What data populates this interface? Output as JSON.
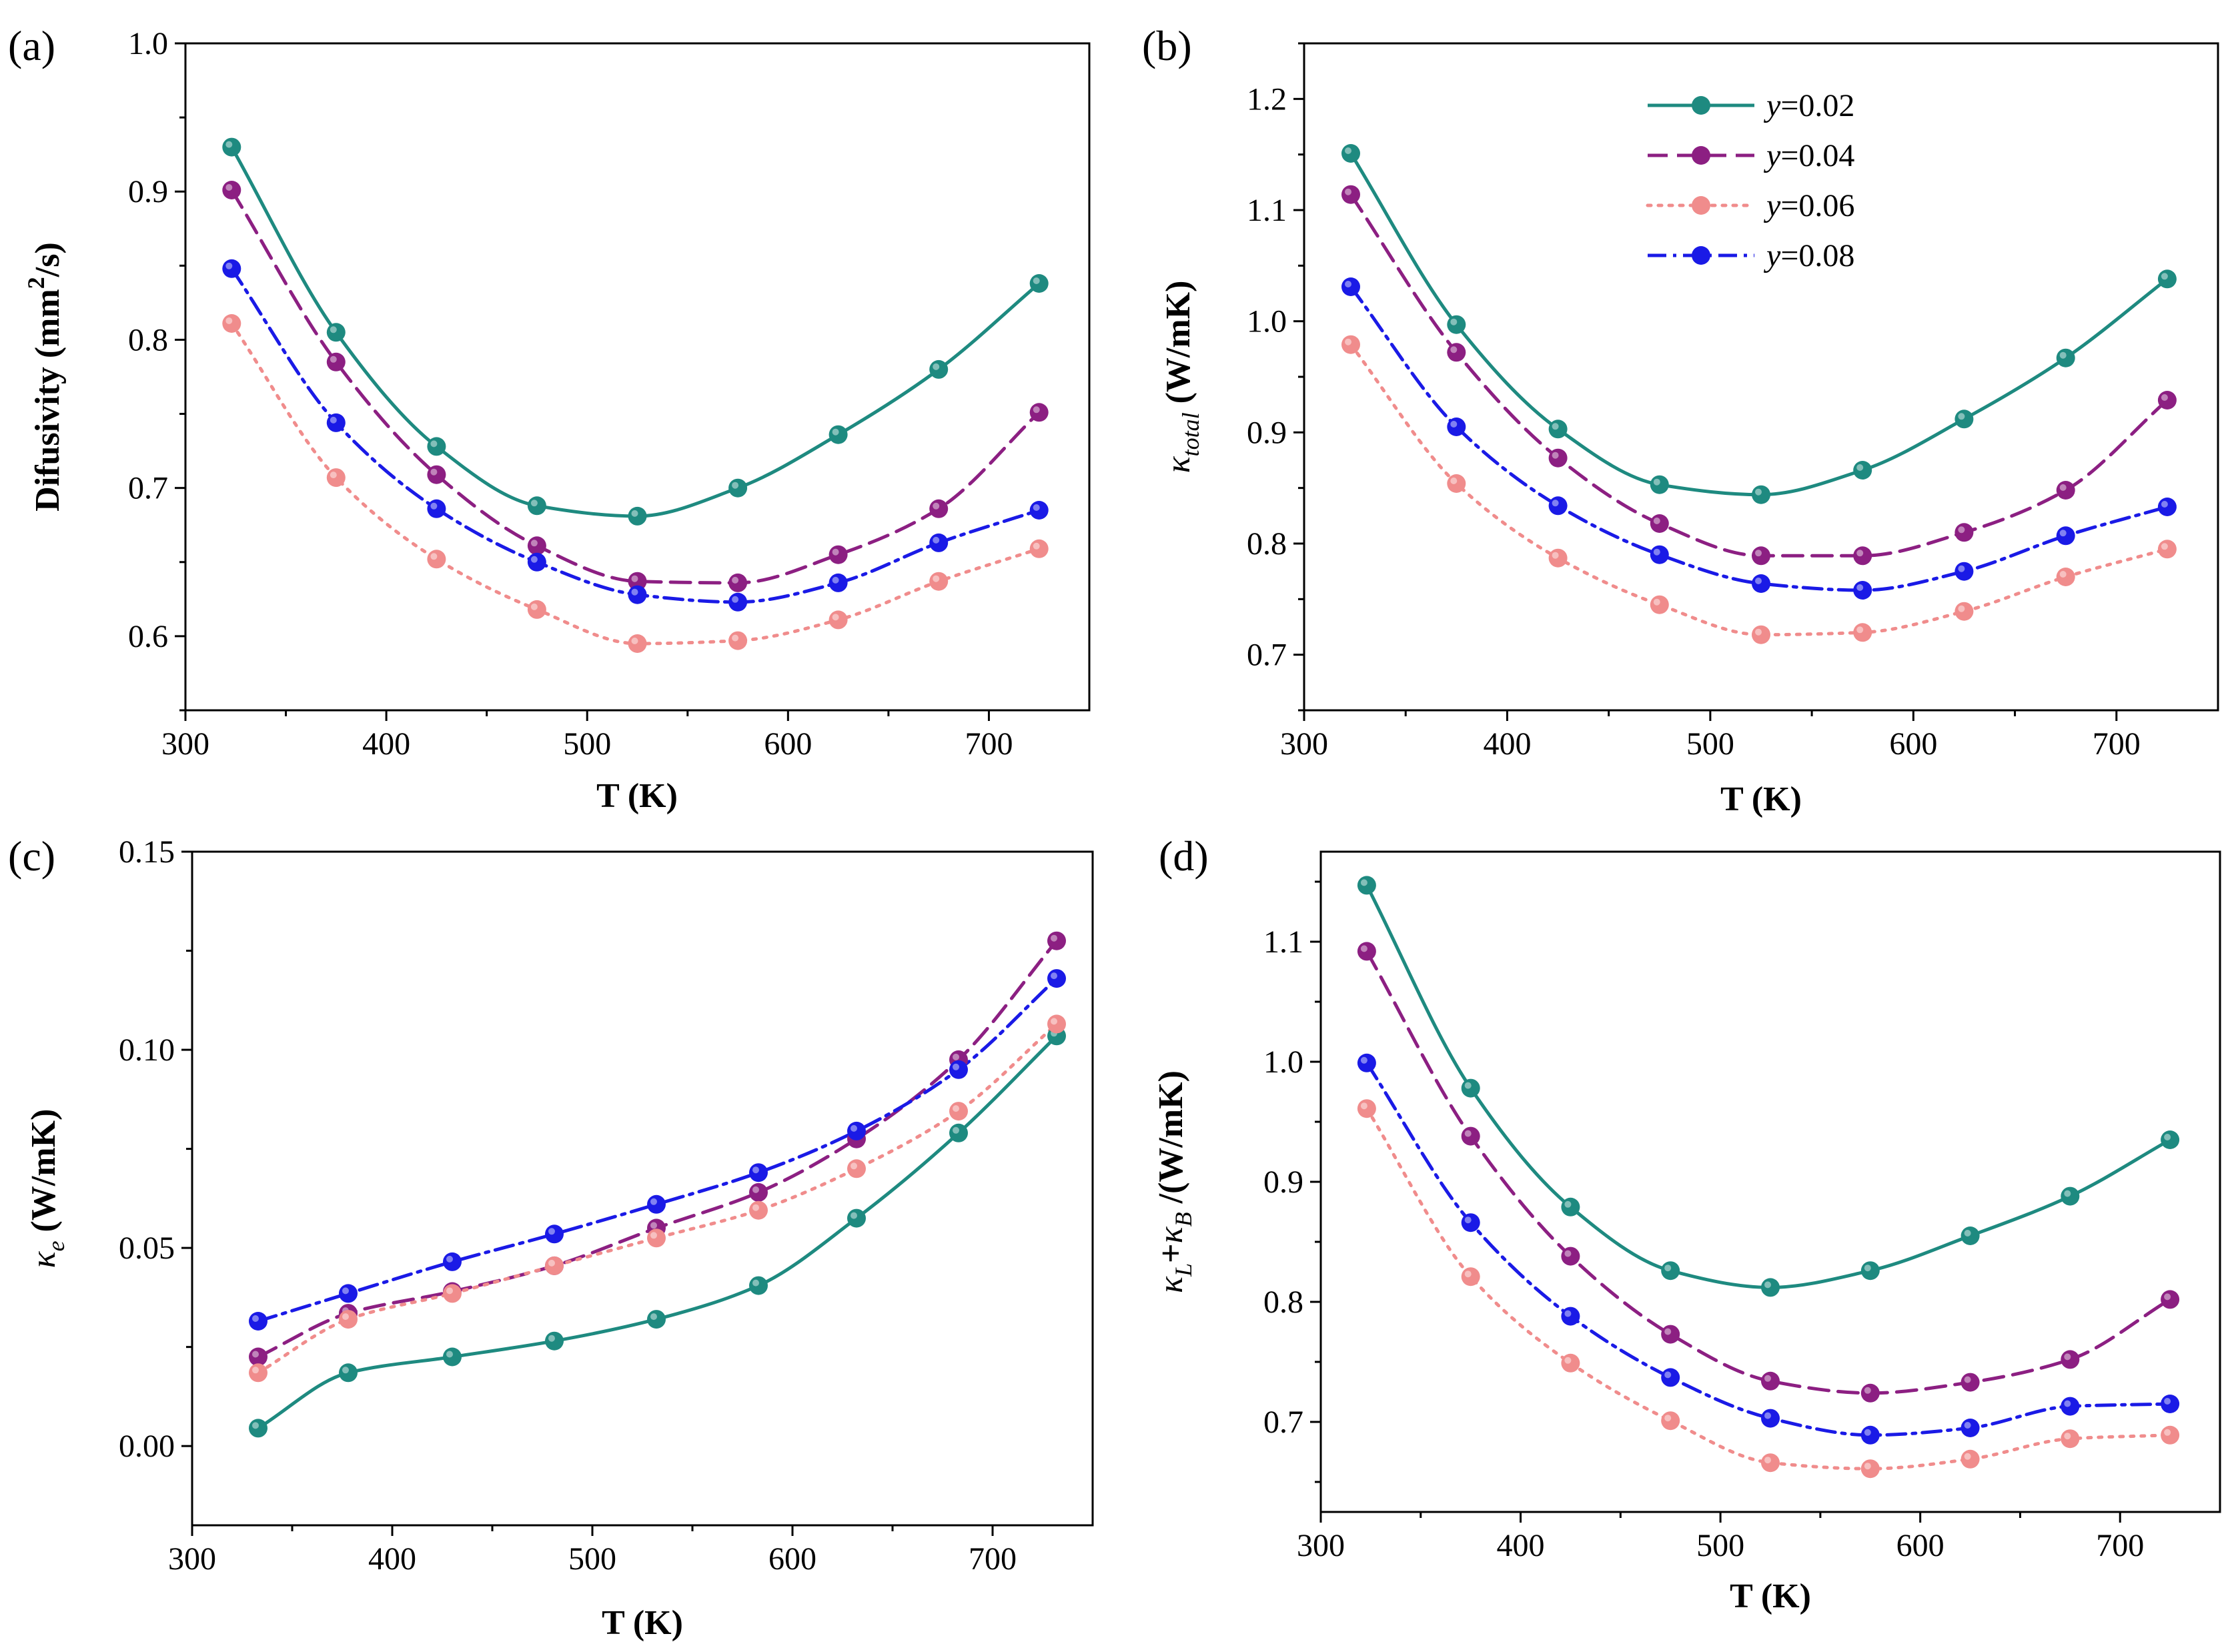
{
  "figure": {
    "legend": {
      "entries": [
        {
          "var": "y",
          "value": "=0.02"
        },
        {
          "var": "y",
          "value": "=0.04"
        },
        {
          "var": "y",
          "value": "=0.06"
        },
        {
          "var": "y",
          "value": "=0.08"
        }
      ]
    }
  },
  "series_style": [
    {
      "name": "y=0.02",
      "color": "#1e8a80",
      "dash": "solid"
    },
    {
      "name": "y=0.04",
      "color": "#8c1f82",
      "dash": "dash"
    },
    {
      "name": "y=0.06",
      "color": "#f08c8c",
      "dash": "dot"
    },
    {
      "name": "y=0.08",
      "color": "#1a1ae6",
      "dash": "dashdot"
    }
  ],
  "chart_data": [
    {
      "id": "a",
      "panel_label": "(a)",
      "type": "line",
      "xlabel": "T (K)",
      "ylabel": {
        "main": "Difusivity (mm",
        "sup": "2",
        "tail": "/s)"
      },
      "xlim": [
        300,
        750
      ],
      "ylim": [
        0.55,
        1.0
      ],
      "xticks": [
        300,
        400,
        500,
        600,
        700
      ],
      "yticks": [
        0.6,
        0.7,
        0.8,
        0.9,
        1.0
      ],
      "ytick_labels": [
        "0.6",
        "0.7",
        "0.8",
        "0.9",
        "1.0"
      ],
      "x": [
        323,
        375,
        425,
        475,
        525,
        575,
        625,
        675,
        725
      ],
      "series": [
        {
          "name": "y=0.02",
          "values": [
            0.93,
            0.805,
            0.728,
            0.688,
            0.681,
            0.7,
            0.736,
            0.78,
            0.838
          ]
        },
        {
          "name": "y=0.04",
          "values": [
            0.901,
            0.785,
            0.709,
            0.661,
            0.637,
            0.636,
            0.655,
            0.686,
            0.751
          ]
        },
        {
          "name": "y=0.06",
          "values": [
            0.811,
            0.707,
            0.652,
            0.618,
            0.595,
            0.597,
            0.611,
            0.637,
            0.659
          ]
        },
        {
          "name": "y=0.08",
          "values": [
            0.848,
            0.744,
            0.686,
            0.65,
            0.628,
            0.623,
            0.636,
            0.663,
            0.685
          ]
        }
      ]
    },
    {
      "id": "b",
      "panel_label": "(b)",
      "type": "line",
      "xlabel": "T (K)",
      "ylabel": {
        "main": "κ",
        "sub": "total",
        "tail": " (W/mK)"
      },
      "xlim": [
        300,
        750
      ],
      "ylim": [
        0.65,
        1.25
      ],
      "xticks": [
        300,
        400,
        500,
        600,
        700
      ],
      "yticks": [
        0.7,
        0.8,
        0.9,
        1.0,
        1.1,
        1.2
      ],
      "ytick_labels": [
        "0.7",
        "0.8",
        "0.9",
        "1.0",
        "1.1",
        "1.2"
      ],
      "x": [
        323,
        375,
        425,
        475,
        525,
        575,
        625,
        675,
        725
      ],
      "has_legend": true,
      "series": [
        {
          "name": "y=0.02",
          "values": [
            1.151,
            0.997,
            0.903,
            0.853,
            0.844,
            0.866,
            0.912,
            0.967,
            1.038
          ]
        },
        {
          "name": "y=0.04",
          "values": [
            1.114,
            0.972,
            0.877,
            0.818,
            0.789,
            0.789,
            0.81,
            0.848,
            0.929
          ]
        },
        {
          "name": "y=0.06",
          "values": [
            0.979,
            0.854,
            0.787,
            0.745,
            0.718,
            0.72,
            0.739,
            0.77,
            0.795
          ]
        },
        {
          "name": "y=0.08",
          "values": [
            1.031,
            0.905,
            0.834,
            0.79,
            0.764,
            0.758,
            0.775,
            0.807,
            0.833
          ]
        }
      ]
    },
    {
      "id": "c",
      "panel_label": "(c)",
      "type": "line",
      "xlabel": "T (K)",
      "ylabel": {
        "main": "κ",
        "sub": "e",
        "tail": " (W/mK)"
      },
      "xlim": [
        300,
        750
      ],
      "ylim": [
        -0.02,
        0.15
      ],
      "xticks": [
        300,
        400,
        500,
        600,
        700
      ],
      "yticks": [
        0.0,
        0.05,
        0.1,
        0.15
      ],
      "ytick_labels": [
        "0.00",
        "0.05",
        "0.10",
        "0.15"
      ],
      "x": [
        333,
        378,
        430,
        481,
        532,
        583,
        632,
        683,
        732
      ],
      "series": [
        {
          "name": "y=0.02",
          "values": [
            0.0045,
            0.0185,
            0.0225,
            0.0265,
            0.032,
            0.0405,
            0.0575,
            0.079,
            0.1035
          ]
        },
        {
          "name": "y=0.04",
          "values": [
            0.0225,
            0.0335,
            0.039,
            0.0455,
            0.055,
            0.064,
            0.0775,
            0.0975,
            0.1275
          ]
        },
        {
          "name": "y=0.06",
          "values": [
            0.0185,
            0.032,
            0.0385,
            0.0455,
            0.0525,
            0.0595,
            0.07,
            0.0845,
            0.1065
          ]
        },
        {
          "name": "y=0.08",
          "values": [
            0.0315,
            0.0385,
            0.0465,
            0.0535,
            0.061,
            0.069,
            0.0795,
            0.095,
            0.118
          ]
        }
      ]
    },
    {
      "id": "d",
      "panel_label": "(d)",
      "type": "line",
      "xlabel": "T (K)",
      "ylabel": {
        "k1": "κ",
        "s1": "L",
        "plus": "+",
        "k2": "κ",
        "s2": "B",
        "tail": " /(W/mK)"
      },
      "xlim": [
        300,
        750
      ],
      "ylim": [
        0.625,
        1.175
      ],
      "xticks": [
        300,
        400,
        500,
        600,
        700
      ],
      "yticks": [
        0.7,
        0.8,
        0.9,
        1.0,
        1.1
      ],
      "ytick_labels": [
        "0.7",
        "0.8",
        "0.9",
        "1.0",
        "1.1"
      ],
      "x": [
        323,
        375,
        425,
        475,
        525,
        575,
        625,
        675,
        725
      ],
      "series": [
        {
          "name": "y=0.02",
          "values": [
            1.147,
            0.978,
            0.879,
            0.826,
            0.812,
            0.826,
            0.855,
            0.888,
            0.935
          ]
        },
        {
          "name": "y=0.04",
          "values": [
            1.092,
            0.938,
            0.838,
            0.773,
            0.734,
            0.724,
            0.733,
            0.752,
            0.802
          ]
        },
        {
          "name": "y=0.06",
          "values": [
            0.961,
            0.821,
            0.749,
            0.701,
            0.666,
            0.661,
            0.669,
            0.686,
            0.689
          ]
        },
        {
          "name": "y=0.08",
          "values": [
            0.999,
            0.866,
            0.788,
            0.737,
            0.703,
            0.689,
            0.695,
            0.713,
            0.715
          ]
        }
      ]
    }
  ]
}
